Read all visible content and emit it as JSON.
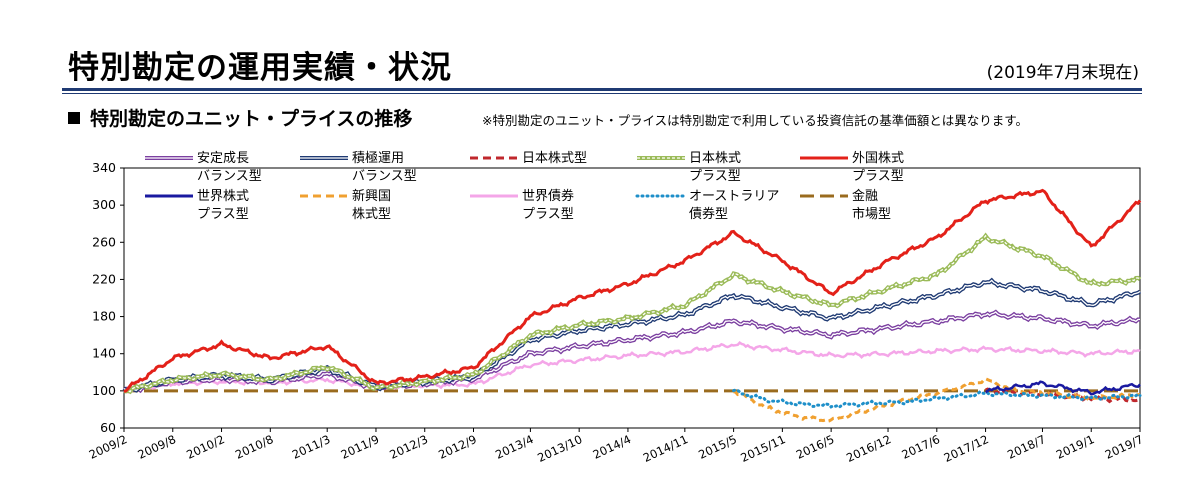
{
  "header": {
    "title": "特別勘定の運用実績・状況",
    "as_of": "(2019年7月末現在)"
  },
  "section": {
    "title": "特別勘定のユニット・プライスの推移",
    "note": "※特別勘定のユニット・プライスは特別勘定で利用している投資信託の基準価額とは異なります。"
  },
  "chart_data": {
    "type": "line",
    "x_label_ticks": [
      "2009/2",
      "2009/8",
      "2010/2",
      "2010/8",
      "2011/3",
      "2011/9",
      "2012/3",
      "2012/9",
      "2013/4",
      "2013/10",
      "2014/4",
      "2014/11",
      "2015/5",
      "2015/11",
      "2016/5",
      "2016/12",
      "2017/6",
      "2017/12",
      "2018/7",
      "2019/1",
      "2019/7"
    ],
    "x_tick_t": [
      0,
      6,
      12,
      18,
      25,
      31,
      37,
      43,
      50,
      56,
      62,
      69,
      75,
      81,
      87,
      94,
      100,
      106,
      113,
      119,
      125
    ],
    "ylim": [
      60,
      340
    ],
    "yticks": [
      60,
      100,
      140,
      180,
      220,
      260,
      300,
      340
    ],
    "series": [
      {
        "name": "安定成長\nバランス型",
        "color": "#7b3fa0",
        "style": "double",
        "points": [
          [
            0,
            100
          ],
          [
            6,
            110
          ],
          [
            12,
            113
          ],
          [
            18,
            110
          ],
          [
            25,
            118
          ],
          [
            31,
            104
          ],
          [
            37,
            108
          ],
          [
            43,
            113
          ],
          [
            50,
            140
          ],
          [
            56,
            148
          ],
          [
            62,
            155
          ],
          [
            69,
            163
          ],
          [
            75,
            175
          ],
          [
            81,
            167
          ],
          [
            87,
            160
          ],
          [
            94,
            168
          ],
          [
            100,
            175
          ],
          [
            106,
            183
          ],
          [
            113,
            178
          ],
          [
            119,
            170
          ],
          [
            125,
            177
          ]
        ]
      },
      {
        "name": "積極運用\nバランス型",
        "color": "#1f3a73",
        "style": "double",
        "points": [
          [
            0,
            100
          ],
          [
            6,
            112
          ],
          [
            12,
            117
          ],
          [
            18,
            112
          ],
          [
            25,
            124
          ],
          [
            31,
            104
          ],
          [
            37,
            110
          ],
          [
            43,
            115
          ],
          [
            50,
            155
          ],
          [
            56,
            165
          ],
          [
            62,
            172
          ],
          [
            69,
            182
          ],
          [
            75,
            203
          ],
          [
            81,
            190
          ],
          [
            87,
            178
          ],
          [
            94,
            192
          ],
          [
            100,
            203
          ],
          [
            106,
            217
          ],
          [
            113,
            208
          ],
          [
            119,
            193
          ],
          [
            125,
            207
          ]
        ]
      },
      {
        "name": "日本株式型",
        "color": "#c0282d",
        "style": "dash",
        "points": [
          [
            106,
            100
          ],
          [
            113,
            97
          ],
          [
            119,
            92
          ],
          [
            125,
            90
          ]
        ]
      },
      {
        "name": "日本株式\nプラス型",
        "color": "#9bbb59",
        "style": "greendouble",
        "points": [
          [
            0,
            100
          ],
          [
            6,
            112
          ],
          [
            12,
            118
          ],
          [
            18,
            112
          ],
          [
            25,
            126
          ],
          [
            31,
            103
          ],
          [
            37,
            110
          ],
          [
            43,
            117
          ],
          [
            50,
            160
          ],
          [
            56,
            171
          ],
          [
            62,
            178
          ],
          [
            69,
            192
          ],
          [
            75,
            225
          ],
          [
            81,
            207
          ],
          [
            87,
            192
          ],
          [
            94,
            210
          ],
          [
            100,
            225
          ],
          [
            106,
            265
          ],
          [
            113,
            245
          ],
          [
            119,
            215
          ],
          [
            125,
            220
          ]
        ]
      },
      {
        "name": "外国株式\nプラス型",
        "color": "#e32119",
        "style": "solid",
        "points": [
          [
            0,
            100
          ],
          [
            6,
            135
          ],
          [
            12,
            150
          ],
          [
            18,
            135
          ],
          [
            25,
            148
          ],
          [
            31,
            108
          ],
          [
            37,
            115
          ],
          [
            43,
            125
          ],
          [
            50,
            180
          ],
          [
            56,
            200
          ],
          [
            62,
            215
          ],
          [
            69,
            240
          ],
          [
            75,
            270
          ],
          [
            81,
            240
          ],
          [
            87,
            205
          ],
          [
            94,
            240
          ],
          [
            100,
            265
          ],
          [
            106,
            305
          ],
          [
            113,
            315
          ],
          [
            119,
            255
          ],
          [
            125,
            305
          ]
        ]
      },
      {
        "name": "世界株式\nプラス型",
        "color": "#1a1aa0",
        "style": "solid",
        "points": [
          [
            106,
            100
          ],
          [
            113,
            108
          ],
          [
            119,
            98
          ],
          [
            125,
            107
          ]
        ]
      },
      {
        "name": "新興国\n株式型",
        "color": "#f0a030",
        "style": "dash",
        "points": [
          [
            75,
            100
          ],
          [
            79,
            82
          ],
          [
            83,
            72
          ],
          [
            87,
            68
          ],
          [
            91,
            78
          ],
          [
            96,
            90
          ],
          [
            100,
            98
          ],
          [
            104,
            107
          ],
          [
            106,
            112
          ],
          [
            110,
            100
          ],
          [
            113,
            98
          ],
          [
            119,
            92
          ],
          [
            125,
            96
          ]
        ]
      },
      {
        "name": "世界債券\nプラス型",
        "color": "#f4a6e8",
        "style": "solid",
        "points": [
          [
            0,
            100
          ],
          [
            6,
            108
          ],
          [
            12,
            110
          ],
          [
            18,
            109
          ],
          [
            25,
            112
          ],
          [
            31,
            104
          ],
          [
            37,
            106
          ],
          [
            43,
            107
          ],
          [
            50,
            128
          ],
          [
            56,
            133
          ],
          [
            62,
            138
          ],
          [
            69,
            142
          ],
          [
            75,
            150
          ],
          [
            81,
            144
          ],
          [
            87,
            138
          ],
          [
            94,
            140
          ],
          [
            100,
            143
          ],
          [
            106,
            145
          ],
          [
            113,
            143
          ],
          [
            119,
            140
          ],
          [
            125,
            143
          ]
        ]
      },
      {
        "name": "オーストラリア\n債券型",
        "color": "#1e8fc9",
        "style": "dot",
        "points": [
          [
            75,
            100
          ],
          [
            79,
            90
          ],
          [
            83,
            86
          ],
          [
            87,
            84
          ],
          [
            91,
            86
          ],
          [
            96,
            88
          ],
          [
            100,
            92
          ],
          [
            104,
            95
          ],
          [
            106,
            97
          ],
          [
            113,
            95
          ],
          [
            119,
            92
          ],
          [
            125,
            95
          ]
        ]
      },
      {
        "name": "金融\n市場型",
        "color": "#9a6b1e",
        "style": "longdash",
        "points": [
          [
            0,
            100
          ],
          [
            125,
            100
          ]
        ]
      }
    ]
  }
}
